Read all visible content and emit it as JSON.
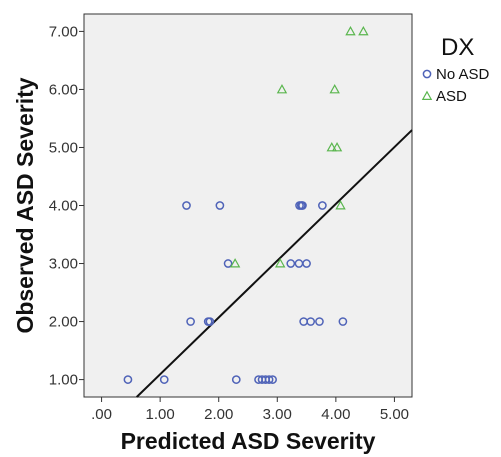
{
  "chart_data": {
    "type": "scatter",
    "xlabel": "Predicted ASD Severity",
    "ylabel": "Observed ASD Severity",
    "xlim": [
      -0.3,
      5.3
    ],
    "ylim": [
      0.7,
      7.3
    ],
    "x_ticks": [
      0,
      1,
      2,
      3,
      4,
      5
    ],
    "x_tick_labels": [
      ".00",
      "1.00",
      "2.00",
      "3.00",
      "4.00",
      "5.00"
    ],
    "y_ticks": [
      1,
      2,
      3,
      4,
      5,
      6,
      7
    ],
    "y_tick_labels": [
      "1.00",
      "2.00",
      "3.00",
      "4.00",
      "5.00",
      "6.00",
      "7.00"
    ],
    "grid": false,
    "background": "#f0f0f0",
    "legend": {
      "title": "DX",
      "placement": "right",
      "entries": [
        {
          "label": "No ASD",
          "marker": "circle",
          "color": "#4f63b8"
        },
        {
          "label": "ASD",
          "marker": "triangle",
          "color": "#5ab64e"
        }
      ]
    },
    "series": [
      {
        "name": "No ASD",
        "marker": "circle",
        "color": "#4f63b8",
        "points": [
          [
            0.45,
            1
          ],
          [
            1.07,
            1
          ],
          [
            2.3,
            1
          ],
          [
            2.68,
            1
          ],
          [
            2.74,
            1
          ],
          [
            2.8,
            1
          ],
          [
            2.86,
            1
          ],
          [
            2.92,
            1
          ],
          [
            1.52,
            2
          ],
          [
            1.82,
            2
          ],
          [
            1.85,
            2
          ],
          [
            3.45,
            2
          ],
          [
            3.57,
            2
          ],
          [
            3.72,
            2
          ],
          [
            4.12,
            2
          ],
          [
            2.16,
            3
          ],
          [
            3.23,
            3
          ],
          [
            3.37,
            3
          ],
          [
            3.5,
            3
          ],
          [
            1.45,
            4
          ],
          [
            2.02,
            4
          ],
          [
            3.38,
            4
          ],
          [
            3.41,
            4
          ],
          [
            3.43,
            4
          ],
          [
            3.77,
            4
          ]
        ]
      },
      {
        "name": "ASD",
        "marker": "triangle",
        "color": "#5ab64e",
        "points": [
          [
            2.28,
            3
          ],
          [
            3.05,
            3
          ],
          [
            4.08,
            4
          ],
          [
            3.93,
            5
          ],
          [
            4.02,
            5
          ],
          [
            3.08,
            6
          ],
          [
            3.98,
            6
          ],
          [
            4.25,
            7
          ],
          [
            4.47,
            7
          ]
        ]
      }
    ],
    "fit_line": {
      "from": [
        0.6,
        0.7
      ],
      "to": [
        5.3,
        5.3
      ],
      "color": "#111111"
    }
  }
}
